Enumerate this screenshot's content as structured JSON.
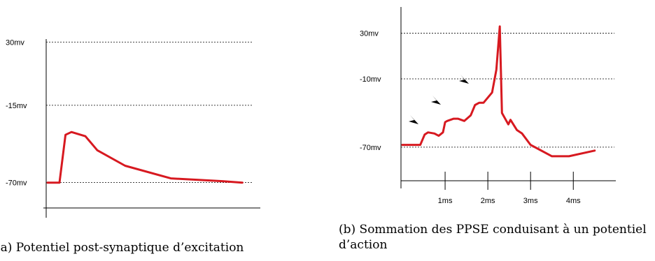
{
  "chart_data": [
    {
      "type": "line",
      "caption": "(a) Potentiel post-synaptique d’excitation",
      "y_tick_labels": [
        "30mv",
        "-15mv",
        "-70mv"
      ],
      "y_tick_values": [
        30,
        -15,
        -70
      ],
      "x_tick_labels": [],
      "xlim": [
        0,
        10
      ],
      "ylim": [
        -95,
        50
      ],
      "grid": "horizontal dashed at y ticks",
      "series": [
        {
          "color": "#d71920",
          "x": [
            0,
            0.6,
            0.9,
            1.2,
            1.9,
            2.5,
            3.9,
            6.2,
            8.8,
            9.8
          ],
          "y": [
            -70,
            -70,
            -36,
            -34,
            -37,
            -47,
            -58,
            -67,
            -69,
            -70
          ]
        }
      ]
    },
    {
      "type": "line",
      "caption": "(b) Sommation des PPSE conduisant à un potentiel d’action",
      "y_tick_labels": [
        "30mv",
        "-10mv",
        "-70mv"
      ],
      "y_tick_values": [
        30,
        -10,
        -70
      ],
      "x_tick_labels": [
        "1ms",
        "2ms",
        "3ms",
        "4ms"
      ],
      "x_tick_values": [
        1,
        2,
        3,
        4
      ],
      "xlim": [
        0,
        4.7
      ],
      "ylim": [
        -105,
        58
      ],
      "grid": "horizontal dashed at y ticks",
      "annotations": [
        "arrowhead",
        "arrowhead",
        "arrowhead"
      ],
      "series": [
        {
          "color": "#d71920",
          "x": [
            0,
            0.42,
            0.52,
            0.6,
            0.75,
            0.85,
            0.95,
            1.0,
            1.05,
            1.2,
            1.3,
            1.45,
            1.6,
            1.7,
            1.8,
            1.9,
            2.1,
            2.2,
            2.28,
            2.33,
            2.48,
            2.53,
            2.68,
            2.8,
            3.0,
            3.5,
            3.9,
            4.5
          ],
          "y": [
            -68,
            -68,
            -59,
            -57,
            -58,
            -60,
            -57,
            -48,
            -47,
            -45,
            -45,
            -47,
            -42,
            -33,
            -31,
            -31,
            -22,
            -2,
            36,
            -40,
            -50,
            -46,
            -55,
            -58,
            -68,
            -78,
            -78,
            -73
          ]
        }
      ]
    }
  ]
}
